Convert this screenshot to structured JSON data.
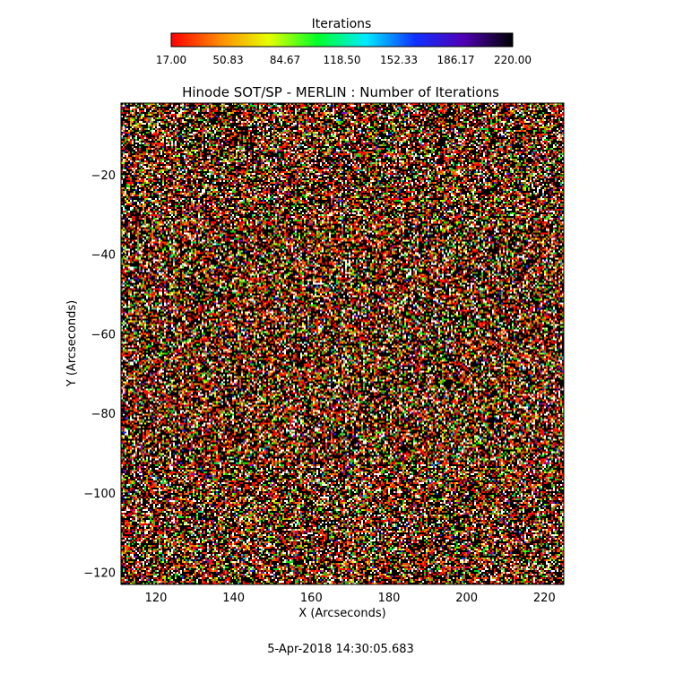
{
  "colorbar": {
    "title": "Iterations",
    "tick_labels": [
      "17.00",
      "50.83",
      "84.67",
      "118.50",
      "152.33",
      "186.17",
      "220.00"
    ],
    "colors": [
      "#ff0000",
      "#ff8a00",
      "#e6ff00",
      "#00ff2a",
      "#00eaff",
      "#1030ff",
      "#5000b4",
      "#000000"
    ]
  },
  "chart_data": {
    "type": "heatmap",
    "title": "Hinode SOT/SP - MERLIN : Number of Iterations",
    "xlabel": "X (Arcseconds)",
    "ylabel": "Y (Arcseconds)",
    "xlim": [
      111,
      225
    ],
    "ylim": [
      -123,
      -2
    ],
    "xticks": [
      120,
      140,
      160,
      180,
      200,
      220
    ],
    "xtick_labels": [
      "120",
      "140",
      "160",
      "180",
      "200",
      "220"
    ],
    "yticks": [
      -20,
      -40,
      -60,
      -80,
      -100,
      -120
    ],
    "ytick_labels": [
      "−20",
      "−40",
      "−60",
      "−80",
      "−100",
      "−120"
    ],
    "value_range": [
      17.0,
      220.0
    ],
    "colormap": "rainbow red-to-black"
  },
  "footer": {
    "timestamp": "5-Apr-2018 14:30:05.683"
  }
}
